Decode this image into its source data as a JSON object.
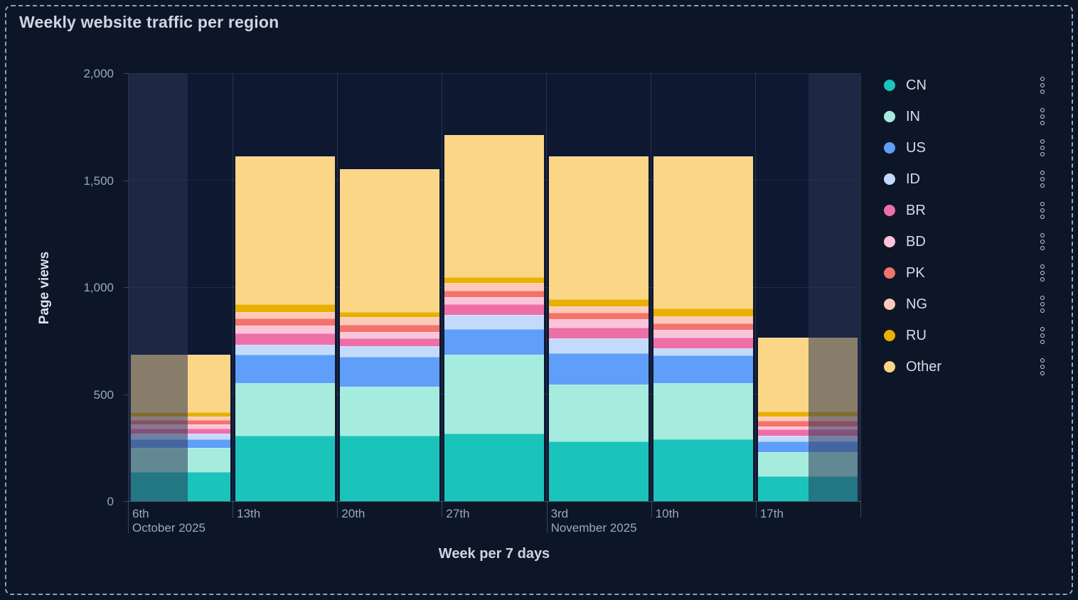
{
  "title": "Weekly website traffic per region",
  "colors": {
    "background": "#0d1626",
    "frame_dashed_border": "#8da1c0",
    "grid": "rgba(137,155,196,0.2)",
    "unselected_mask": "rgba(44,55,85,0.55)",
    "tick_text": "#9aa8bf",
    "title_text": "#ccd6e4"
  },
  "chart_data": {
    "type": "bar",
    "stacked": true,
    "grid": true,
    "legend_position": "right",
    "title": "Weekly website traffic per region",
    "xlabel": "Week per 7 days",
    "ylabel": "Page views",
    "ylim": [
      0,
      2000
    ],
    "yticks": [
      0,
      500,
      1000,
      1500,
      2000
    ],
    "ytick_labels": [
      "0",
      "500",
      "1,000",
      "1,500",
      "2,000"
    ],
    "categories": [
      "6th",
      "13th",
      "20th",
      "27th",
      "3rd",
      "10th",
      "17th"
    ],
    "month_labels": [
      {
        "text": "October 2025",
        "category_index": 0
      },
      {
        "text": "November 2025",
        "category_index": 4
      }
    ],
    "series": [
      {
        "name": "CN",
        "color": "#1ac4bb",
        "values": [
          135,
          305,
          305,
          315,
          280,
          290,
          115
        ]
      },
      {
        "name": "IN",
        "color": "#a5ebde",
        "values": [
          115,
          245,
          230,
          370,
          265,
          260,
          115
        ]
      },
      {
        "name": "US",
        "color": "#5f9ffa",
        "values": [
          40,
          135,
          140,
          120,
          145,
          130,
          50
        ]
      },
      {
        "name": "ID",
        "color": "#c4dafa",
        "values": [
          25,
          45,
          50,
          65,
          70,
          35,
          25
        ]
      },
      {
        "name": "BR",
        "color": "#ee6fa8",
        "values": [
          25,
          55,
          35,
          50,
          50,
          50,
          30
        ]
      },
      {
        "name": "BD",
        "color": "#fcc4d9",
        "values": [
          20,
          35,
          30,
          35,
          40,
          35,
          15
        ]
      },
      {
        "name": "PK",
        "color": "#f4736c",
        "values": [
          20,
          35,
          35,
          30,
          30,
          30,
          25
        ]
      },
      {
        "name": "NG",
        "color": "#fdc9b8",
        "values": [
          15,
          30,
          35,
          35,
          30,
          35,
          20
        ]
      },
      {
        "name": "RU",
        "color": "#e8b000",
        "values": [
          20,
          35,
          25,
          25,
          35,
          35,
          25
        ]
      },
      {
        "name": "Other",
        "color": "#fbd687",
        "values": [
          270,
          690,
          665,
          665,
          665,
          710,
          345
        ]
      }
    ],
    "totals": [
      685,
      1610,
      1550,
      1710,
      1610,
      1610,
      765
    ],
    "unselected_ranges": "outer halves of first and last columns are dimmed"
  },
  "legend": {
    "item_menu_icon": "vertical-dots-menu-icon",
    "items": [
      "CN",
      "IN",
      "US",
      "ID",
      "BR",
      "BD",
      "PK",
      "NG",
      "RU",
      "Other"
    ]
  }
}
